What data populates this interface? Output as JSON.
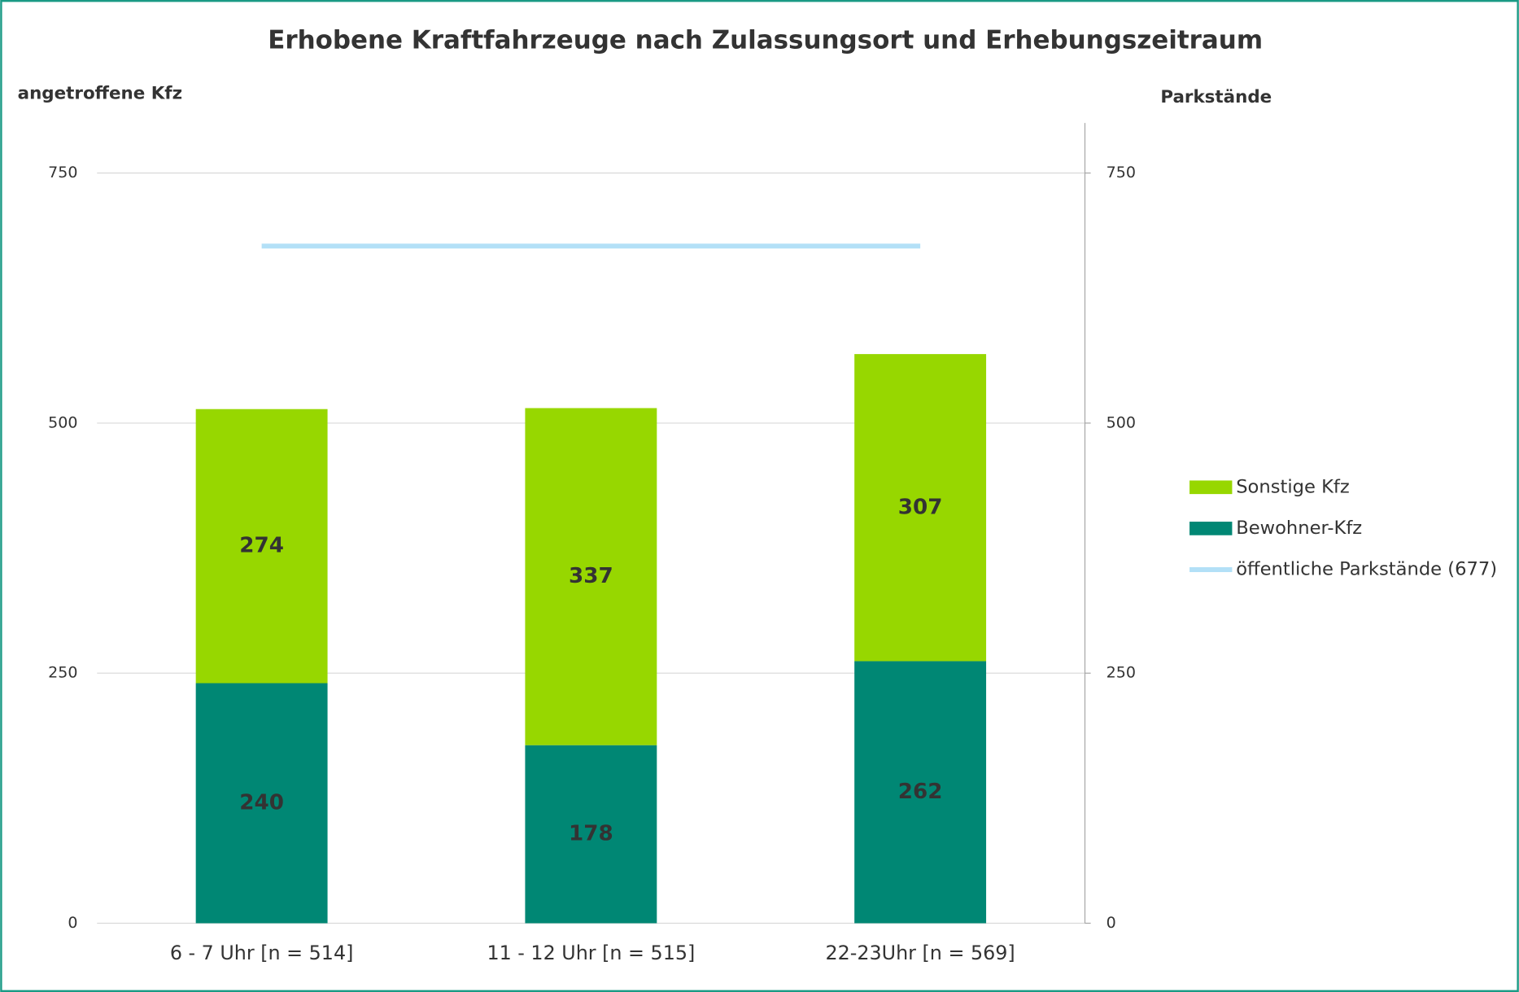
{
  "chart_data": {
    "type": "bar",
    "stacked": true,
    "title": "Erhobene Kraftfahrzeuge nach Zulassungsort und Erhebungszeitraum",
    "y_label": "angetroffene Kfz",
    "y2_label": "Parkstände",
    "categories": [
      "6 - 7 Uhr [n = 514]",
      "11 - 12 Uhr [n = 515]",
      "22-23Uhr [n = 569]"
    ],
    "series": [
      {
        "name": "Bewohner-Kfz",
        "color": "#008774",
        "type": "bar",
        "values": [
          240,
          178,
          262
        ]
      },
      {
        "name": "Sonstige Kfz",
        "color": "#97d700",
        "type": "bar",
        "values": [
          274,
          337,
          307
        ]
      },
      {
        "name": "öffentliche Parkstände (677)",
        "color": "#b3e0f7",
        "type": "line",
        "axis": "y2",
        "values": [
          677,
          677,
          677
        ]
      }
    ],
    "ylim": [
      0,
      800
    ],
    "yticks": [
      0,
      250,
      500,
      750
    ],
    "y2lim": [
      0,
      800
    ],
    "y2ticks": [
      0,
      250,
      500,
      750
    ],
    "grid": true,
    "legend": "right"
  }
}
